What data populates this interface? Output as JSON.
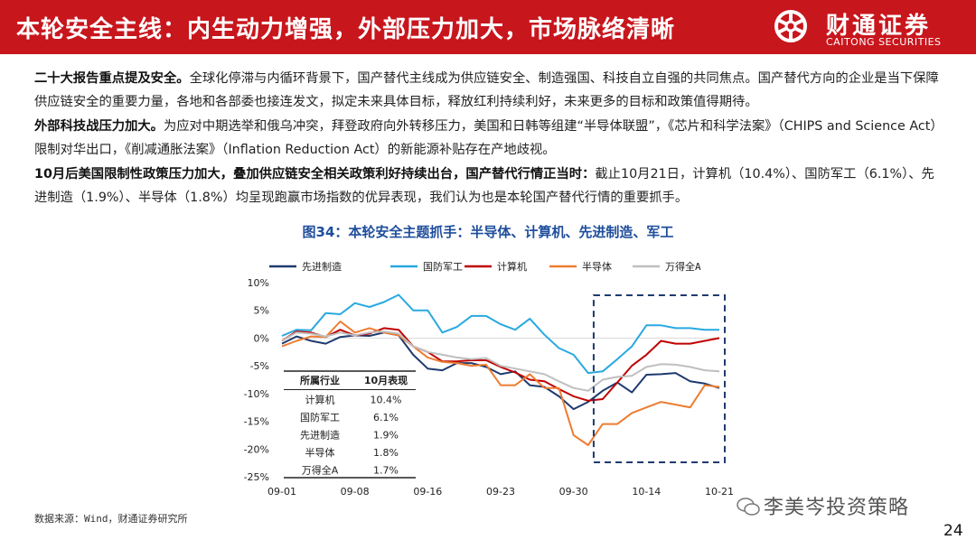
{
  "header": {
    "title": "本轮安全主线：内生动力增强，外部压力加大，市场脉络清晰",
    "brand_cn": "财通证券",
    "brand_en": "CAITONG SECURITIES"
  },
  "colors": {
    "header_bg": "#c8161d",
    "fig_title": "#1f4e9c"
  },
  "paragraphs": {
    "p1_bold": "二十大报告重点提及安全。",
    "p1_text": "全球化停滞与内循环背景下，国产替代主线成为供应链安全、制造强国、科技自立自强的共同焦点。国产替代方向的企业是当下保障供应链安全的重要力量，各地和各部委也接连发文，拟定未来具体目标，释放红利持续利好，未来更多的目标和政策值得期待。",
    "p2_bold": "外部科技战压力加大。",
    "p2_text": "为应对中期选举和俄乌冲突，拜登政府向外转移压力，美国和日韩等组建“半导体联盟”，《芯片和科学法案》（CHIPS and Science Act）限制对华出口，《削减通胀法案》（Inflation Reduction Act）的新能源补贴存在产地歧视。",
    "p3_bold": "10月后美国限制性政策压力加大，叠加供应链安全相关政策利好持续出台，国产替代行情正当时：",
    "p3_text": "截止10月21日，计算机（10.4%）、国防军工（6.1%）、先进制造（1.9%）、半导体（1.8%）均呈现跑赢市场指数的优异表现，我们认为也是本轮国产替代行情的重要抓手。"
  },
  "figure": {
    "title": "图34：本轮安全主题抓手：半导体、计算机、先进制造、军工"
  },
  "table": {
    "headers": [
      "所属行业",
      "10月表现"
    ],
    "rows": [
      [
        "计算机",
        "10.4%"
      ],
      [
        "国防军工",
        "6.1%"
      ],
      [
        "先进制造",
        "1.9%"
      ],
      [
        "半导体",
        "1.8%"
      ],
      [
        "万得全A",
        "1.7%"
      ]
    ]
  },
  "chart_data": {
    "type": "line",
    "title": "图34：本轮安全主题抓手：半导体、计算机、先进制造、军工",
    "xlabel": "",
    "ylabel": "",
    "ylim": [
      -25,
      10
    ],
    "yticks": [
      10,
      5,
      0,
      -5,
      -10,
      -15,
      -20,
      -25
    ],
    "ytick_labels": [
      "10%",
      "5%",
      "0%",
      "-5%",
      "-10%",
      "-15%",
      "-20%",
      "-25%"
    ],
    "grid": false,
    "legend_position": "top",
    "x_tick_labels": [
      "09-01",
      "09-08",
      "09-16",
      "09-23",
      "09-30",
      "10-14",
      "10-21"
    ],
    "x_tick_index": [
      0,
      5,
      10,
      15,
      20,
      25,
      30
    ],
    "highlight_range_index": [
      22,
      30
    ],
    "series": [
      {
        "name": "先进制造",
        "color": "#1f3a6e",
        "values": [
          -1,
          0.3,
          -0.5,
          -1,
          0.2,
          0.5,
          0.4,
          1,
          0.5,
          -3,
          -5.5,
          -5.8,
          -4.5,
          -4.5,
          -5.2,
          -6.5,
          -6,
          -8.5,
          -8.8,
          -10.5,
          -12.8,
          -11.5,
          -9.5,
          -8,
          -9.8,
          -6.6,
          -6.5,
          -6.3,
          -7.8,
          -8.2,
          -9
        ]
      },
      {
        "name": "国防军工",
        "color": "#29a9e0",
        "values": [
          0.4,
          1.5,
          1.4,
          4.5,
          4.3,
          6.3,
          5.6,
          6.5,
          7.8,
          5,
          5,
          1,
          2,
          4,
          4,
          2.5,
          1.5,
          3.5,
          0.6,
          -1.8,
          -3,
          -6.3,
          -6,
          -3.8,
          -1.5,
          2.3,
          2.3,
          1.8,
          1.8,
          1.5,
          1.5
        ]
      },
      {
        "name": "计算机",
        "color": "#c00000",
        "values": [
          -0.5,
          1.2,
          1,
          0.2,
          1.5,
          0.5,
          0.8,
          1.8,
          1.5,
          -1.5,
          -2.5,
          -4.2,
          -4.2,
          -4,
          -4,
          -5.2,
          -6.2,
          -7.5,
          -7.8,
          -9.2,
          -10.5,
          -11.3,
          -11,
          -8,
          -5,
          -3,
          -0.5,
          -1,
          -1,
          -0.5,
          0
        ]
      },
      {
        "name": "半导体",
        "color": "#ed7d31",
        "values": [
          -1.5,
          -0.5,
          0.3,
          0.2,
          3,
          1,
          1.8,
          1,
          0.5,
          -1.5,
          -3.5,
          -4.3,
          -4.5,
          -5,
          -4.8,
          -8.5,
          -8.5,
          -6.5,
          -9,
          -9,
          -17.5,
          -19.3,
          -15.5,
          -15.5,
          -13.5,
          -12.5,
          -11.5,
          -12,
          -12.5,
          -8.5,
          -8.8
        ]
      },
      {
        "name": "万得全A",
        "color": "#bfbfbf",
        "values": [
          -0.5,
          1,
          0.8,
          0.3,
          1,
          0.5,
          1,
          1.2,
          0.8,
          -1.5,
          -2.5,
          -3,
          -3.5,
          -3.8,
          -3.6,
          -5,
          -5.5,
          -6,
          -6.5,
          -7.8,
          -9,
          -9.5,
          -7.5,
          -7,
          -6.8,
          -5.2,
          -4.7,
          -4.8,
          -5.2,
          -5.8,
          -6
        ]
      }
    ]
  },
  "source": "数据来源：Wind，财通证券研究所",
  "watermark": "李美岑投资策略",
  "page_number": "24"
}
